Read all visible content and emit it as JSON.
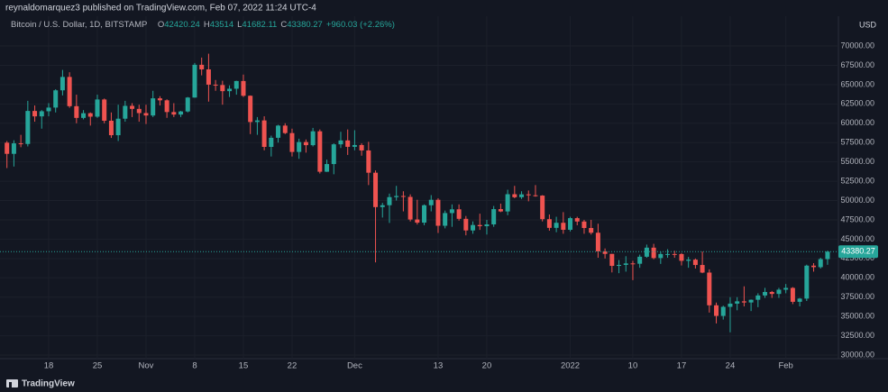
{
  "header": {
    "publisher": "reynaldomarquez3 published on TradingView.com, Feb 07, 2022 11:24 UTC-4",
    "symbol": "Bitcoin / U.S. Dollar, 1D, BITSTAMP",
    "ohlc": [
      {
        "label": "O",
        "value": 42420.24
      },
      {
        "label": "H",
        "value": 43514.0
      },
      {
        "label": "L",
        "value": 41682.11
      },
      {
        "label": "C",
        "value": 43380.27
      }
    ],
    "change": "+960.03 (+2.26%)",
    "currency": "USD"
  },
  "footer": {
    "brand": "TradingView"
  },
  "chart_data": {
    "type": "candlestick",
    "up_color": "#26a69a",
    "down_color": "#ef5350",
    "grid": true,
    "x": [
      "Oct 12",
      "Oct 13",
      "Oct 14",
      "Oct 15",
      "Oct 16",
      "Oct 17",
      "Oct 18",
      "Oct 19",
      "Oct 20",
      "Oct 21",
      "Oct 22",
      "Oct 23",
      "Oct 24",
      "Oct 25",
      "Oct 26",
      "Oct 27",
      "Oct 28",
      "Oct 29",
      "Oct 30",
      "Oct 31",
      "Nov 1",
      "Nov 2",
      "Nov 3",
      "Nov 4",
      "Nov 5",
      "Nov 6",
      "Nov 7",
      "Nov 8",
      "Nov 9",
      "Nov 10",
      "Nov 11",
      "Nov 12",
      "Nov 13",
      "Nov 14",
      "Nov 15",
      "Nov 16",
      "Nov 17",
      "Nov 18",
      "Nov 19",
      "Nov 20",
      "Nov 21",
      "Nov 22",
      "Nov 23",
      "Nov 24",
      "Nov 25",
      "Nov 26",
      "Nov 27",
      "Nov 28",
      "Nov 29",
      "Nov 30",
      "Dec 1",
      "Dec 2",
      "Dec 3",
      "Dec 4",
      "Dec 5",
      "Dec 6",
      "Dec 7",
      "Dec 8",
      "Dec 9",
      "Dec 10",
      "Dec 11",
      "Dec 12",
      "Dec 13",
      "Dec 14",
      "Dec 15",
      "Dec 16",
      "Dec 17",
      "Dec 18",
      "Dec 19",
      "Dec 20",
      "Dec 21",
      "Dec 22",
      "Dec 23",
      "Dec 24",
      "Dec 25",
      "Dec 26",
      "Dec 27",
      "Dec 28",
      "Dec 29",
      "Dec 30",
      "Dec 31",
      "Jan 1",
      "Jan 2",
      "Jan 3",
      "Jan 4",
      "Jan 5",
      "Jan 6",
      "Jan 7",
      "Jan 8",
      "Jan 9",
      "Jan 10",
      "Jan 11",
      "Jan 12",
      "Jan 13",
      "Jan 14",
      "Jan 15",
      "Jan 16",
      "Jan 17",
      "Jan 18",
      "Jan 19",
      "Jan 20",
      "Jan 21",
      "Jan 22",
      "Jan 23",
      "Jan 24",
      "Jan 25",
      "Jan 26",
      "Jan 27",
      "Jan 28",
      "Jan 29",
      "Jan 30",
      "Jan 31",
      "Feb 1",
      "Feb 2",
      "Feb 3",
      "Feb 4",
      "Feb 5",
      "Feb 6",
      "Feb 7"
    ],
    "open": [
      57484,
      56041,
      57401,
      57321,
      61593,
      60892,
      61553,
      62026,
      64262,
      65993,
      62210,
      60693,
      61300,
      60852,
      63078,
      60329,
      58455,
      60591,
      62253,
      61859,
      61318,
      61004,
      63226,
      62970,
      61452,
      61125,
      61527,
      63326,
      67566,
      66971,
      64995,
      64949,
      64155,
      64469,
      65466,
      63557,
      60161,
      60368,
      56942,
      58119,
      59697,
      58730,
      56288,
      57569,
      57165,
      58960,
      53726,
      54721,
      57274,
      57776,
      56950,
      57184,
      56480,
      53601,
      49152,
      49396,
      50441,
      50588,
      50471,
      47545,
      47140,
      49389,
      50098,
      46737,
      48379,
      48864,
      47632,
      46131,
      46834,
      46681,
      46914,
      48890,
      48588,
      50819,
      50429,
      50801,
      50679,
      50640,
      47588,
      46464,
      47120,
      46216,
      47722,
      47286,
      46446,
      45833,
      43425,
      43097,
      41547,
      41672,
      41865,
      41822,
      42729,
      43903,
      42560,
      43079,
      43080,
      43072,
      42201,
      42352,
      41661,
      40680,
      36445,
      35071,
      36244,
      36660,
      36958,
      36809,
      37160,
      37717,
      38166,
      37917,
      38466,
      38694,
      36896,
      37311,
      41574,
      41382,
      42420.24
    ],
    "high": [
      57700,
      57800,
      58500,
      62900,
      62300,
      61700,
      62600,
      64400,
      66900,
      66600,
      63700,
      61700,
      61400,
      63700,
      63200,
      61400,
      62400,
      62900,
      62600,
      62400,
      62400,
      64200,
      63500,
      63100,
      62600,
      61600,
      63400,
      67800,
      68500,
      69000,
      65600,
      65500,
      64900,
      65500,
      66300,
      63600,
      60800,
      60900,
      58400,
      59800,
      60000,
      59300,
      58000,
      57900,
      59400,
      59200,
      55300,
      57400,
      58900,
      59200,
      59100,
      57400,
      57600,
      53900,
      49700,
      50900,
      51900,
      51200,
      50800,
      50100,
      49500,
      50700,
      50300,
      48700,
      49500,
      49500,
      48000,
      47300,
      48300,
      47500,
      49300,
      49600,
      51400,
      51900,
      51200,
      51300,
      52000,
      50700,
      48200,
      47900,
      48500,
      47900,
      47900,
      47500,
      47500,
      47000,
      43800,
      43100,
      42300,
      42800,
      42200,
      43000,
      44300,
      44400,
      43400,
      43700,
      43500,
      43200,
      42700,
      42500,
      43400,
      41100,
      36800,
      36400,
      37500,
      37500,
      38900,
      37200,
      38000,
      38700,
      38300,
      38700,
      39200,
      38800,
      37400,
      41700,
      41900,
      42600,
      43514.0
    ],
    "low": [
      54200,
      54400,
      56900,
      57000,
      60200,
      59300,
      60900,
      61400,
      63600,
      62000,
      60000,
      60500,
      59700,
      60700,
      60000,
      58100,
      57700,
      60200,
      60800,
      60200,
      59900,
      60800,
      62300,
      60700,
      60800,
      60800,
      61400,
      63300,
      66200,
      62800,
      64200,
      62400,
      63400,
      63700,
      63400,
      58600,
      58500,
      56500,
      55700,
      57500,
      58600,
      55700,
      55400,
      56200,
      57000,
      53500,
      53700,
      53400,
      56800,
      55900,
      56500,
      55800,
      52000,
      42000,
      47800,
      47100,
      50000,
      48600,
      47300,
      46900,
      46800,
      48600,
      45800,
      46400,
      46600,
      47400,
      45500,
      45700,
      46200,
      45600,
      46600,
      48500,
      48100,
      50300,
      50200,
      49900,
      50500,
      47300,
      46100,
      45900,
      45700,
      46000,
      46800,
      45700,
      45600,
      42600,
      42500,
      40700,
      40600,
      40800,
      39700,
      41300,
      42600,
      42400,
      41800,
      42600,
      42600,
      41600,
      41300,
      41200,
      40600,
      35500,
      34100,
      34600,
      32950,
      35800,
      36300,
      35700,
      36200,
      37400,
      37400,
      37400,
      38000,
      36600,
      36300,
      37000,
      40800,
      41200,
      41682.11
    ],
    "close": [
      56041,
      57401,
      57321,
      61593,
      60892,
      61553,
      62026,
      64262,
      65993,
      62210,
      60693,
      61300,
      60852,
      63078,
      60329,
      58455,
      60591,
      62253,
      61859,
      61318,
      61004,
      63226,
      62970,
      61452,
      61125,
      61527,
      63326,
      67566,
      66971,
      64995,
      64949,
      64155,
      64469,
      65466,
      63557,
      60161,
      60368,
      56942,
      58119,
      59697,
      58730,
      56288,
      57569,
      57165,
      58960,
      53726,
      54721,
      57274,
      57776,
      56950,
      57184,
      56480,
      53601,
      49152,
      49396,
      50441,
      50588,
      50471,
      47545,
      47140,
      49389,
      50098,
      46737,
      48379,
      48864,
      47632,
      46131,
      46834,
      46681,
      46914,
      48890,
      48588,
      50819,
      50429,
      50801,
      50679,
      50640,
      47588,
      46464,
      47120,
      46216,
      47722,
      47286,
      46446,
      45833,
      43425,
      43097,
      41547,
      41672,
      41865,
      41822,
      42729,
      43903,
      42560,
      43079,
      43080,
      43072,
      42201,
      42352,
      41661,
      40680,
      36445,
      35071,
      36244,
      36660,
      36958,
      36809,
      37160,
      37717,
      38166,
      37917,
      38466,
      38694,
      36896,
      37311,
      41574,
      41382,
      42420.24,
      43380.27
    ],
    "ylim": [
      29540,
      73850
    ],
    "yticks": [
      {
        "value": 30000,
        "label": "30000.00"
      },
      {
        "value": 32500,
        "label": "32500.00"
      },
      {
        "value": 35000,
        "label": "35000.00"
      },
      {
        "value": 37500,
        "label": "37500.00"
      },
      {
        "value": 40000,
        "label": "40000.00"
      },
      {
        "value": 42500,
        "label": "42500.00"
      },
      {
        "value": 45000,
        "label": "45000.00"
      },
      {
        "value": 47500,
        "label": "47500.00"
      },
      {
        "value": 50000,
        "label": "50000.00"
      },
      {
        "value": 52500,
        "label": "52500.00"
      },
      {
        "value": 55000,
        "label": "55000.00"
      },
      {
        "value": 57500,
        "label": "57500.00"
      },
      {
        "value": 60000,
        "label": "60000.00"
      },
      {
        "value": 62500,
        "label": "62500.00"
      },
      {
        "value": 65000,
        "label": "65000.00"
      },
      {
        "value": 67500,
        "label": "67500.00"
      },
      {
        "value": 70000,
        "label": "70000.00"
      }
    ],
    "xticks": [
      {
        "value": "Oct 18",
        "label": "18"
      },
      {
        "value": "Oct 25",
        "label": "25"
      },
      {
        "value": "Nov 1",
        "label": "Nov"
      },
      {
        "value": "Nov 8",
        "label": "8"
      },
      {
        "value": "Nov 15",
        "label": "15"
      },
      {
        "value": "Nov 22",
        "label": "22"
      },
      {
        "value": "Dec 1",
        "label": "Dec"
      },
      {
        "value": "Dec 13",
        "label": "13"
      },
      {
        "value": "Dec 20",
        "label": "20"
      },
      {
        "value": "Jan 1",
        "label": "2022"
      },
      {
        "value": "Jan 10",
        "label": "10"
      },
      {
        "value": "Jan 17",
        "label": "17"
      },
      {
        "value": "Jan 24",
        "label": "24"
      },
      {
        "value": "Feb 1",
        "label": "Feb"
      }
    ],
    "last_price": 43380.27
  }
}
